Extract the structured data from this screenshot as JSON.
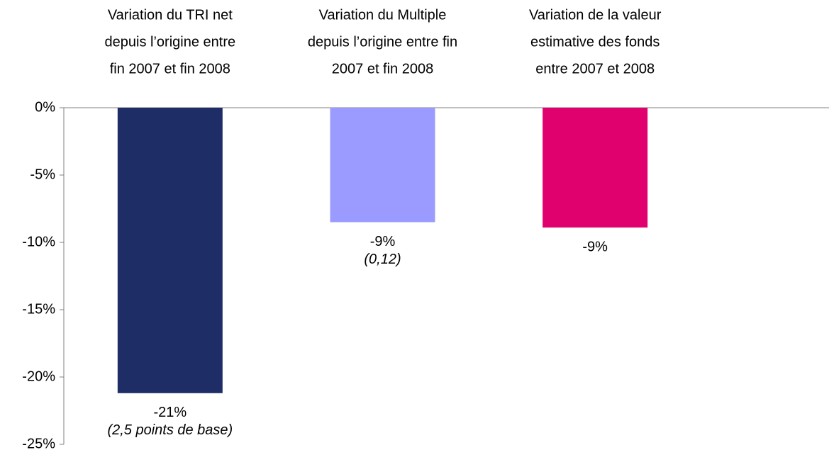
{
  "chart_data": {
    "type": "bar",
    "categories": [
      [
        "Variation du TRI net",
        "depuis l’origine entre",
        "fin 2007 et fin 2008"
      ],
      [
        "Variation du Multiple",
        "depuis l’origine entre fin",
        "2007 et fin 2008"
      ],
      [
        "Variation de la valeur",
        "estimative des fonds",
        "entre 2007 et 2008"
      ]
    ],
    "values": [
      -21.2,
      -8.5,
      -8.9
    ],
    "value_labels": [
      "-21%",
      "-9%",
      "-9%"
    ],
    "annotations": [
      "(2,5 points de base)",
      "(0,12)"
    ],
    "colors": [
      "#1f2d67",
      "#9b9bff",
      "#e0006e"
    ],
    "ylim": [
      -25,
      0
    ],
    "yticks": [
      {
        "value": 0,
        "label": "0%"
      },
      {
        "value": -5,
        "label": "-5%"
      },
      {
        "value": -10,
        "label": "-10%"
      },
      {
        "value": -15,
        "label": "-15%"
      },
      {
        "value": -20,
        "label": "-20%"
      },
      {
        "value": -25,
        "label": "-25%"
      }
    ]
  }
}
